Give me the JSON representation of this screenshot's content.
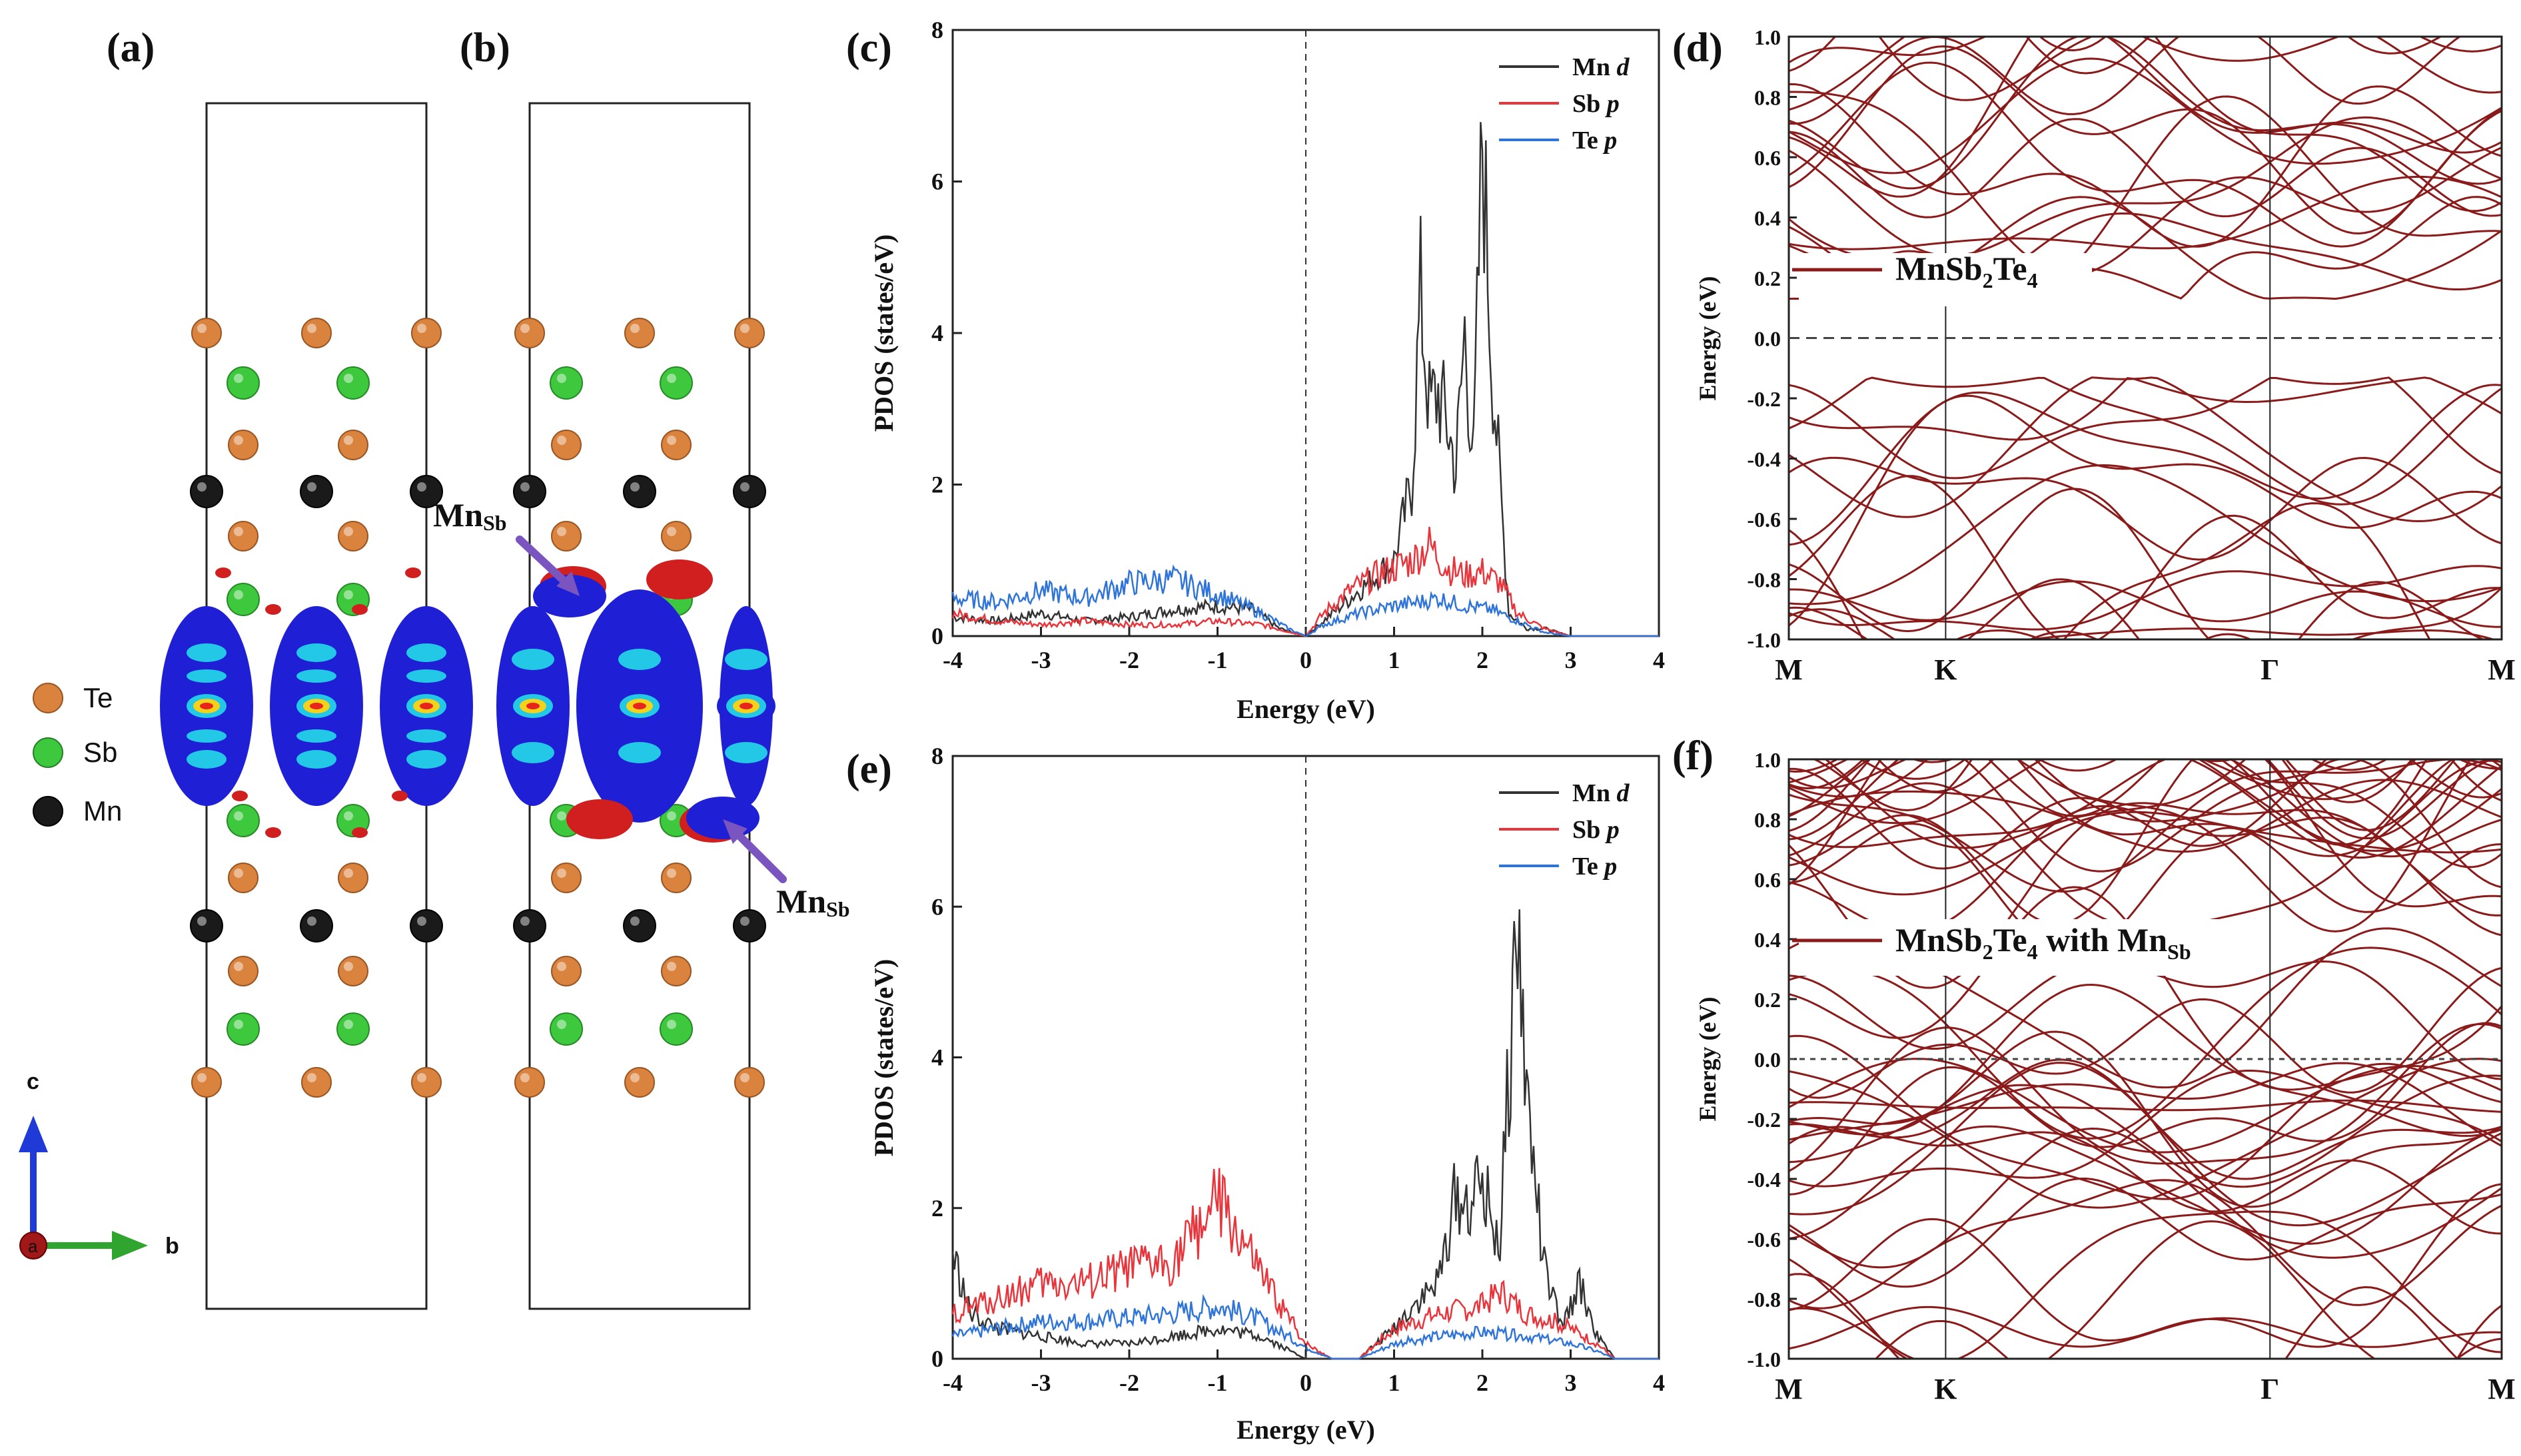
{
  "panels": {
    "a": {
      "label": "(a)"
    },
    "b": {
      "label": "(b)",
      "defect_label_top": "Mn",
      "defect_sub_top": "Sb",
      "defect_label_bottom": "Mn",
      "defect_sub_bottom": "Sb"
    },
    "c": {
      "label": "(c)"
    },
    "d": {
      "label": "(d)"
    },
    "e": {
      "label": "(e)"
    },
    "f": {
      "label": "(f)"
    }
  },
  "atom_legend": [
    {
      "name": "Te",
      "color": "#d9833f"
    },
    {
      "name": "Sb",
      "color": "#3ec83e"
    },
    {
      "name": "Mn",
      "color": "#1a1a1a"
    }
  ],
  "axes_triad": {
    "c_label": "c",
    "b_label": "b",
    "a_label": "a"
  },
  "colors": {
    "band": "#8b1a1a",
    "mn": "#333333",
    "sb": "#e8343a",
    "te": "#2f74d9"
  },
  "chart_data": [
    {
      "id": "c",
      "type": "line",
      "xlabel": "Energy (eV)",
      "ylabel": "PDOS (states/eV)",
      "xlim": [
        -4,
        4
      ],
      "ylim": [
        0,
        8
      ],
      "xticks": [
        "-4",
        "-3",
        "-2",
        "-1",
        "0",
        "1",
        "2",
        "3",
        "4"
      ],
      "yticks": [
        "0",
        "2",
        "4",
        "6",
        "8"
      ],
      "fermi_line_x": 0,
      "series": [
        {
          "name": "Mn",
          "orbital": "d",
          "color": "#333333",
          "x": [
            -4,
            -3.5,
            -3,
            -2.5,
            -2,
            -1.5,
            -1,
            -0.6,
            -0.3,
            0,
            0.2,
            0.6,
            1.0,
            1.2,
            1.3,
            1.4,
            1.5,
            1.6,
            1.7,
            1.8,
            1.9,
            2.0,
            2.1,
            2.2,
            2.3,
            2.5,
            2.7,
            3,
            4
          ],
          "y": [
            0.25,
            0.2,
            0.3,
            0.2,
            0.25,
            0.35,
            0.4,
            0.35,
            0.1,
            0,
            0.2,
            0.6,
            1.0,
            2.0,
            4.5,
            3.0,
            3.2,
            2.8,
            2.2,
            4.0,
            2.3,
            6.6,
            3.8,
            2.0,
            0.3,
            0.1,
            0.1,
            0,
            0
          ]
        },
        {
          "name": "Sb",
          "orbital": "p",
          "color": "#e8343a",
          "x": [
            -4,
            -3.5,
            -3,
            -2.5,
            -2,
            -1.5,
            -1,
            -0.5,
            0,
            0.2,
            0.5,
            0.8,
            1.0,
            1.2,
            1.4,
            1.6,
            1.8,
            2.0,
            2.2,
            2.4,
            2.7,
            3,
            4
          ],
          "y": [
            0.3,
            0.2,
            0.15,
            0.2,
            0.15,
            0.15,
            0.2,
            0.15,
            0,
            0.3,
            0.6,
            0.8,
            0.9,
            1.0,
            1.2,
            0.9,
            0.8,
            0.85,
            0.7,
            0.3,
            0.1,
            0,
            0
          ]
        },
        {
          "name": "Te",
          "orbital": "p",
          "color": "#2f74d9",
          "x": [
            -4,
            -3.5,
            -3,
            -2.5,
            -2,
            -1.5,
            -1,
            -0.5,
            -0.2,
            0,
            0.2,
            0.6,
            1.0,
            1.3,
            1.5,
            1.8,
            2.1,
            2.4,
            2.7,
            3,
            4
          ],
          "y": [
            0.5,
            0.45,
            0.6,
            0.5,
            0.7,
            0.75,
            0.55,
            0.3,
            0.1,
            0,
            0.15,
            0.3,
            0.4,
            0.45,
            0.5,
            0.4,
            0.35,
            0.2,
            0.05,
            0,
            0
          ]
        }
      ]
    },
    {
      "id": "d",
      "type": "line",
      "xlabel": "",
      "ylabel": "Energy (eV)",
      "ylim": [
        -1.0,
        1.0
      ],
      "kpoints": [
        "M",
        "K",
        "Γ",
        "M"
      ],
      "yticks": [
        "-1.0",
        "-0.8",
        "-0.6",
        "-0.4",
        "-0.2",
        "0.0",
        "0.2",
        "0.4",
        "0.6",
        "0.8",
        "1.0"
      ],
      "legend": {
        "base": "MnSb",
        "sub1": "2",
        "mid": "Te",
        "sub2": "4",
        "tail": "",
        "sub3": ""
      },
      "band_gap_note": {
        "cbm": 0.13,
        "vbm": -0.13
      },
      "fermi_line_y": 0
    },
    {
      "id": "e",
      "type": "line",
      "xlabel": "Energy (eV)",
      "ylabel": "PDOS (states/eV)",
      "xlim": [
        -4,
        4
      ],
      "ylim": [
        0,
        8
      ],
      "xticks": [
        "-4",
        "-3",
        "-2",
        "-1",
        "0",
        "1",
        "2",
        "3",
        "4"
      ],
      "yticks": [
        "0",
        "2",
        "4",
        "6",
        "8"
      ],
      "fermi_line_x": 0,
      "series": [
        {
          "name": "Mn",
          "orbital": "d",
          "color": "#333333",
          "x": [
            -4,
            -3.8,
            -3.5,
            -3,
            -2.5,
            -2,
            -1.5,
            -1,
            -0.5,
            0,
            0.3,
            0.6,
            1.0,
            1.2,
            1.5,
            1.7,
            1.8,
            2.0,
            2.2,
            2.3,
            2.4,
            2.5,
            2.7,
            2.9,
            3.1,
            3.3,
            3.5,
            4
          ],
          "y": [
            1.4,
            0.6,
            0.4,
            0.3,
            0.2,
            0.2,
            0.3,
            0.4,
            0.3,
            0,
            0,
            0,
            0.4,
            0.7,
            1.0,
            2.2,
            2.0,
            2.3,
            1.5,
            3.8,
            5.8,
            3.5,
            1.2,
            0.4,
            1.0,
            0.3,
            0,
            0
          ]
        },
        {
          "name": "Sb",
          "orbital": "p",
          "color": "#e8343a",
          "x": [
            -4,
            -3.5,
            -3,
            -2.5,
            -2,
            -1.5,
            -1,
            -0.7,
            -0.4,
            0,
            0.3,
            0.6,
            1.0,
            1.5,
            2.0,
            2.2,
            2.5,
            2.8,
            3.0,
            3.3,
            3.5,
            4
          ],
          "y": [
            0.6,
            0.8,
            1.0,
            1.0,
            1.2,
            1.3,
            2.1,
            1.5,
            0.9,
            0.2,
            0,
            0,
            0.4,
            0.6,
            0.7,
            0.9,
            0.6,
            0.5,
            0.4,
            0.2,
            0,
            0
          ]
        },
        {
          "name": "Te",
          "orbital": "p",
          "color": "#2f74d9",
          "x": [
            -4,
            -3.5,
            -3,
            -2.5,
            -2,
            -1.5,
            -1,
            -0.5,
            0,
            0.3,
            0.6,
            1.0,
            1.5,
            2.0,
            2.5,
            3.0,
            3.3,
            3.5,
            4
          ],
          "y": [
            0.3,
            0.4,
            0.5,
            0.5,
            0.55,
            0.6,
            0.7,
            0.5,
            0.15,
            0,
            0,
            0.2,
            0.3,
            0.35,
            0.3,
            0.2,
            0.1,
            0,
            0
          ]
        }
      ]
    },
    {
      "id": "f",
      "type": "line",
      "xlabel": "",
      "ylabel": "Energy (eV)",
      "ylim": [
        -1.0,
        1.0
      ],
      "kpoints": [
        "M",
        "K",
        "Γ",
        "M"
      ],
      "yticks": [
        "-1.0",
        "-0.8",
        "-0.6",
        "-0.4",
        "-0.2",
        "0.0",
        "0.2",
        "0.4",
        "0.6",
        "0.8",
        "1.0"
      ],
      "legend": {
        "base": "MnSb",
        "sub1": "2",
        "mid": "Te",
        "sub2": "4",
        "tail": " with Mn",
        "sub3": "Sb"
      },
      "fermi_line_y": 0
    }
  ]
}
